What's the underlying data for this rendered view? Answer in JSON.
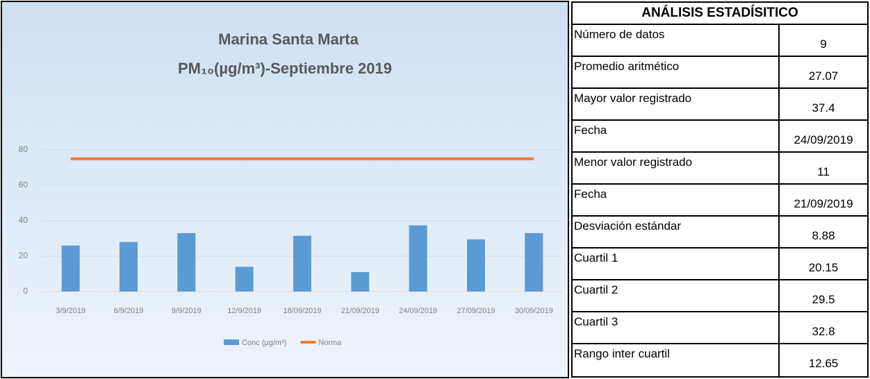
{
  "chart_data": {
    "type": "bar",
    "title": "Marina Santa Marta",
    "subtitle": "PM₁₀(µg/m³)-Septiembre  2019",
    "categories": [
      "3/9/2019",
      "6/9/2019",
      "9/9/2019",
      "12/9/2019",
      "18/09/2019",
      "21/09/2019",
      "24/09/2019",
      "27/09/2019",
      "30/09/2019"
    ],
    "series": [
      {
        "name": "Conc (µg/m³)",
        "type": "bar",
        "color": "#5b9bd5",
        "values": [
          26,
          28,
          33,
          14,
          31.5,
          11,
          37.4,
          29.5,
          33
        ]
      },
      {
        "name": "Norma",
        "type": "line",
        "color": "#ed7d31",
        "values": [
          75,
          75,
          75,
          75,
          75,
          75,
          75,
          75,
          75
        ]
      }
    ],
    "ylim": [
      0,
      80
    ],
    "yticks": [
      0,
      20,
      40,
      60,
      80
    ],
    "grid": true,
    "legend": "bottom"
  },
  "table": {
    "title": "ANÁLISIS ESTADÍSITICO",
    "rows": [
      [
        "Número de datos",
        9
      ],
      [
        "Promedio aritmético",
        27.07
      ],
      [
        "Mayor valor registrado",
        37.4
      ],
      [
        "Fecha",
        "24/09/2019"
      ],
      [
        "Menor valor registrado",
        11
      ],
      [
        "Fecha",
        "21/09/2019"
      ],
      [
        "Desviación estándar",
        8.88
      ],
      [
        "Cuartil 1",
        20.15
      ],
      [
        "Cuartil 2",
        29.5
      ],
      [
        "Cuartil 3",
        32.8
      ],
      [
        "Rango inter cuartil",
        12.65
      ]
    ]
  }
}
